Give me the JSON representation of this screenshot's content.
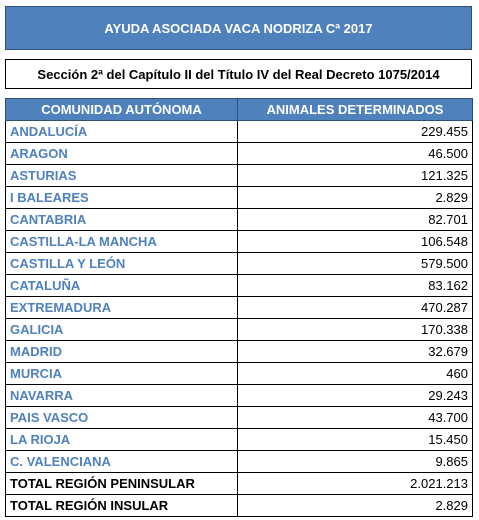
{
  "title": "AYUDA ASOCIADA VACA NODRIZA Cª 2017",
  "subtitle": "Sección 2ª del Capítulo II del Título IV del Real Decreto 1075/2014",
  "table": {
    "headers": [
      "COMUNIDAD AUTÓNOMA",
      "ANIMALES DETERMINADOS"
    ],
    "rows": [
      {
        "name": "ANDALUCÍA",
        "value": "229.455"
      },
      {
        "name": "ARAGON",
        "value": "46.500"
      },
      {
        "name": "ASTURIAS",
        "value": "121.325"
      },
      {
        "name": "I BALEARES",
        "value": "2.829"
      },
      {
        "name": "CANTABRIA",
        "value": "82.701"
      },
      {
        "name": "CASTILLA-LA MANCHA",
        "value": "106.548"
      },
      {
        "name": "CASTILLA Y LEÓN",
        "value": "579.500"
      },
      {
        "name": "CATALUÑA",
        "value": "83.162"
      },
      {
        "name": "EXTREMADURA",
        "value": "470.287"
      },
      {
        "name": "GALICIA",
        "value": "170.338"
      },
      {
        "name": "MADRID",
        "value": "32.679"
      },
      {
        "name": "MURCIA",
        "value": "460"
      },
      {
        "name": "NAVARRA",
        "value": "29.243"
      },
      {
        "name": "PAIS VASCO",
        "value": "43.700"
      },
      {
        "name": "LA RIOJA",
        "value": "15.450"
      },
      {
        "name": "C. VALENCIANA",
        "value": "9.865"
      }
    ],
    "totals": [
      {
        "name": "TOTAL REGIÓN PENINSULAR",
        "value": "2.021.213"
      },
      {
        "name": "TOTAL REGIÓN INSULAR",
        "value": "2.829"
      }
    ]
  },
  "colors": {
    "header_fill": "#4f81bd",
    "region_text": "#4f81bd",
    "total_text": "#000000"
  }
}
